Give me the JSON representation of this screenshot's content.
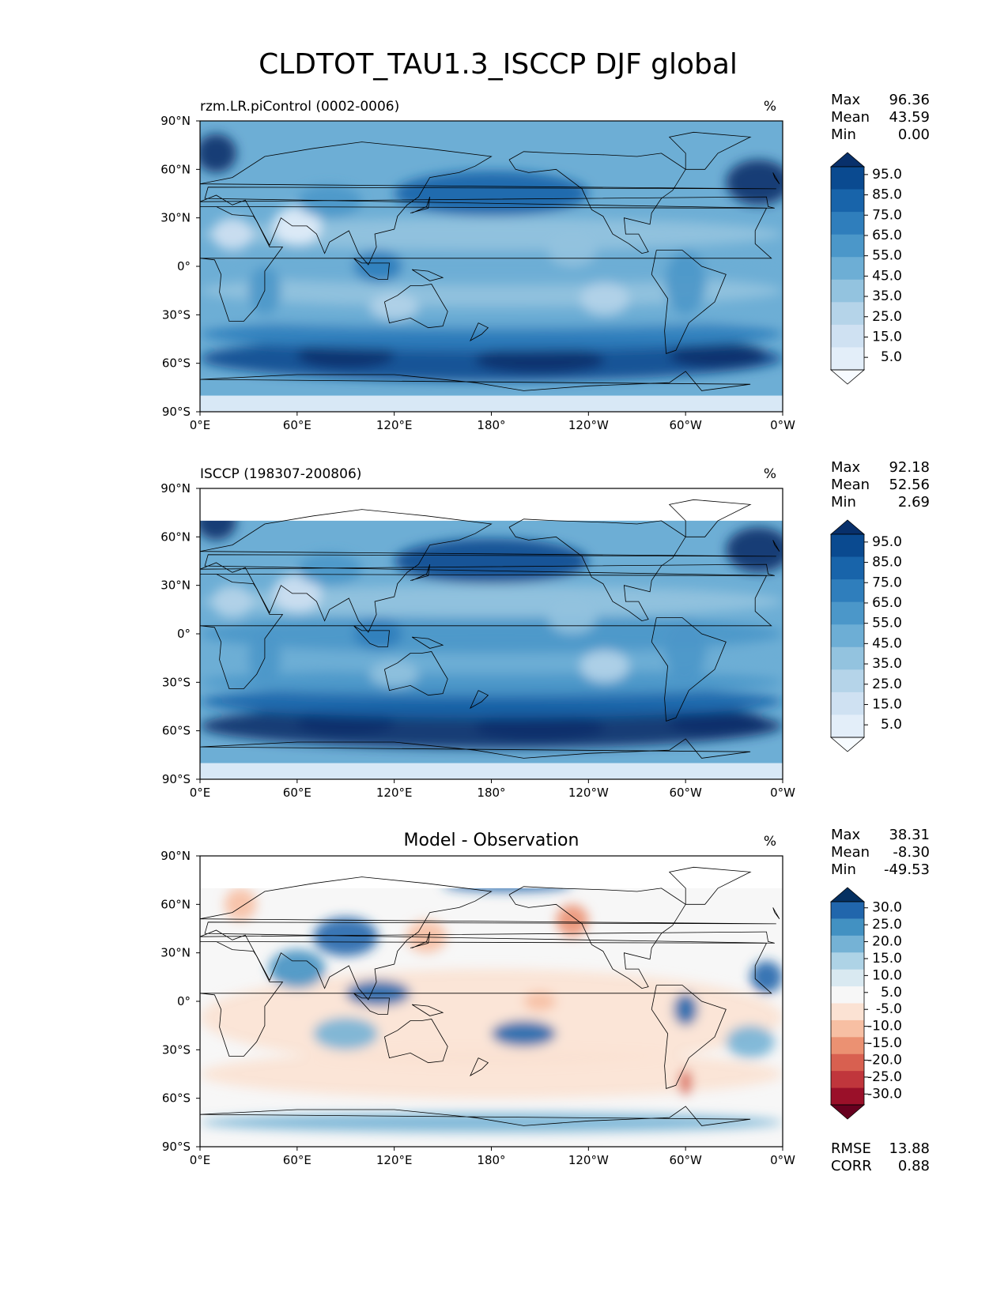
{
  "figure": {
    "title": "CLDTOT_TAU1.3_ISCCP DJF global"
  },
  "colors": {
    "blues": [
      "#f7fbff",
      "#e3eef9",
      "#cfe1f2",
      "#b5d4e9",
      "#93c3df",
      "#6daed5",
      "#4b97c9",
      "#2f7ebc",
      "#1864aa",
      "#0a4a90",
      "#08306b"
    ],
    "diverging": [
      "#67001f",
      "#9a1029",
      "#c0363c",
      "#d86050",
      "#eb9172",
      "#f7bfa3",
      "#fbe2d3",
      "#f7f7f7",
      "#d9e9f1",
      "#aed3e6",
      "#75b2d5",
      "#4291c2",
      "#2166ac",
      "#053061"
    ],
    "coastline": "#000000"
  },
  "chart_data": [
    {
      "type": "heatmap",
      "name": "model",
      "title": "rzm.LR.piControl (0002-0006)",
      "units": "%",
      "stats": [
        {
          "label": "Max",
          "value": "96.36"
        },
        {
          "label": "Mean",
          "value": "43.59"
        },
        {
          "label": "Min",
          "value": "0.00"
        }
      ],
      "colorbar": {
        "palette": "blues",
        "ticks": [
          "95.0",
          "85.0",
          "75.0",
          "65.0",
          "55.0",
          "45.0",
          "35.0",
          "25.0",
          "15.0",
          "5.0"
        ],
        "extend": "both"
      },
      "xticks": [
        "0°E",
        "60°E",
        "120°E",
        "180°",
        "120°W",
        "60°W",
        "0°W"
      ],
      "yticks": [
        "90°N",
        "60°N",
        "30°N",
        "0°",
        "30°S",
        "60°S",
        "90°S"
      ],
      "lon_range": [
        0,
        360
      ],
      "lat_range": [
        -90,
        90
      ]
    },
    {
      "type": "heatmap",
      "name": "observation",
      "title": "ISCCP (198307-200806)",
      "units": "%",
      "stats": [
        {
          "label": "Max",
          "value": "92.18"
        },
        {
          "label": "Mean",
          "value": "52.56"
        },
        {
          "label": "Min",
          "value": "2.69"
        }
      ],
      "colorbar": {
        "palette": "blues",
        "ticks": [
          "95.0",
          "85.0",
          "75.0",
          "65.0",
          "55.0",
          "45.0",
          "35.0",
          "25.0",
          "15.0",
          "5.0"
        ],
        "extend": "both"
      },
      "xticks": [
        "0°E",
        "60°E",
        "120°E",
        "180°",
        "120°W",
        "60°W",
        "0°W"
      ],
      "yticks": [
        "90°N",
        "60°N",
        "30°N",
        "0°",
        "30°S",
        "60°S",
        "90°S"
      ],
      "lon_range": [
        0,
        360
      ],
      "lat_range": [
        -90,
        90
      ]
    },
    {
      "type": "heatmap",
      "name": "difference",
      "title": "Model - Observation",
      "units": "%",
      "stats": [
        {
          "label": "Max",
          "value": "38.31"
        },
        {
          "label": "Mean",
          "value": "-8.30"
        },
        {
          "label": "Min",
          "value": "-49.53"
        }
      ],
      "extra_stats": [
        {
          "label": "RMSE",
          "value": "13.88"
        },
        {
          "label": "CORR",
          "value": "0.88"
        }
      ],
      "colorbar": {
        "palette": "diverging",
        "ticks": [
          "30.0",
          "25.0",
          "20.0",
          "15.0",
          "10.0",
          "5.0",
          "-5.0",
          "-10.0",
          "-15.0",
          "-20.0",
          "-25.0",
          "-30.0"
        ],
        "extend": "both"
      },
      "xticks": [
        "0°E",
        "60°E",
        "120°E",
        "180°",
        "120°W",
        "60°W",
        "0°W"
      ],
      "yticks": [
        "90°N",
        "60°N",
        "30°N",
        "0°",
        "30°S",
        "60°S",
        "90°S"
      ],
      "lon_range": [
        0,
        360
      ],
      "lat_range": [
        -90,
        90
      ]
    }
  ]
}
